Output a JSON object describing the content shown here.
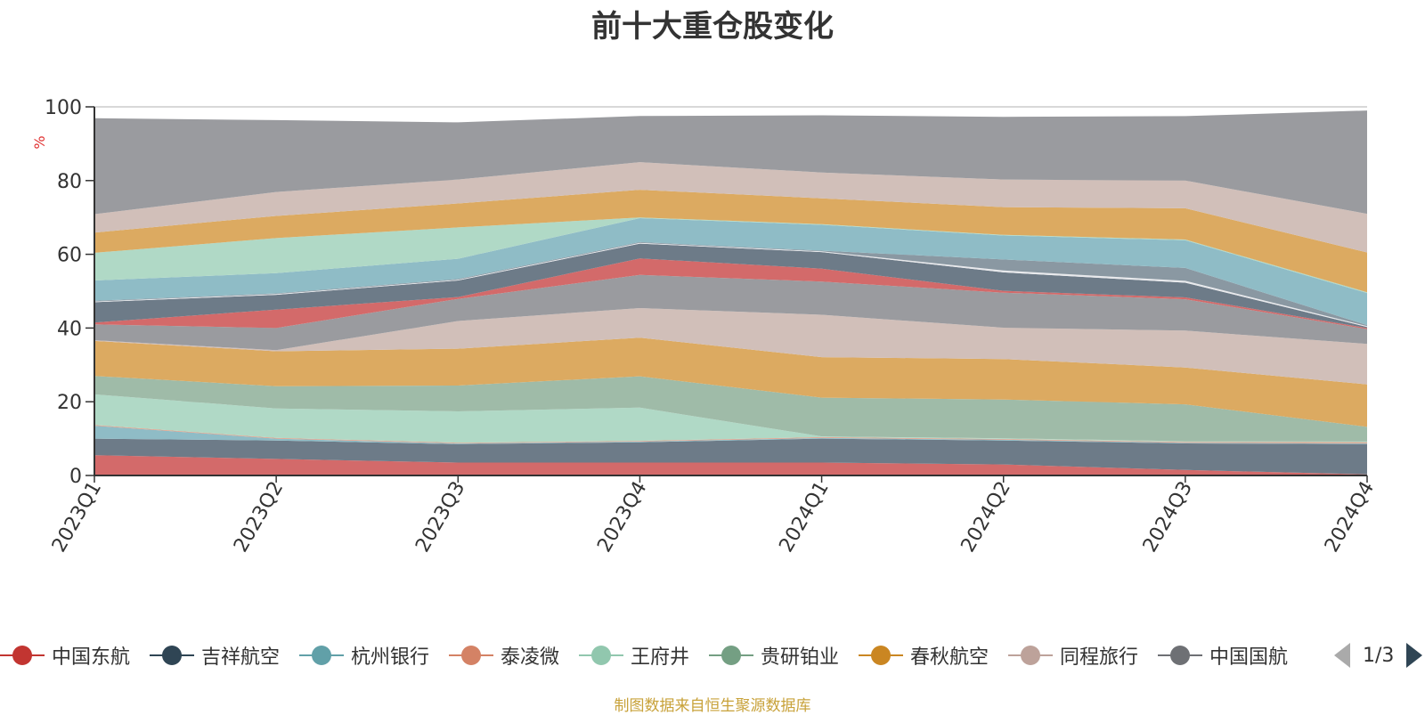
{
  "chart_data": {
    "type": "area",
    "stacked": true,
    "title": "前十大重仓股变化",
    "y_unit_label": "%",
    "ylim": [
      0,
      100
    ],
    "y_ticks": [
      "0",
      "20",
      "40",
      "60",
      "80",
      "100"
    ],
    "grid": true,
    "categories": [
      "2023Q1",
      "2023Q2",
      "2023Q3",
      "2023Q4",
      "2024Q1",
      "2024Q2",
      "2024Q3",
      "2024Q4"
    ],
    "series": [
      {
        "name": "中国东航",
        "color": "#d36a6a",
        "values": [
          5.5,
          4.5,
          3.5,
          3.5,
          3.5,
          3.0,
          1.5,
          0.3
        ]
      },
      {
        "name": "吉祥航空",
        "color": "#6d7b88",
        "values": [
          4.5,
          5.0,
          5.0,
          5.5,
          6.5,
          6.5,
          7.2,
          8.2
        ]
      },
      {
        "name": "杭州银行",
        "color": "#8fbcc6",
        "values": [
          3.5,
          0.5,
          0.2,
          0.2,
          0.2,
          0.2,
          0.2,
          0.2
        ]
      },
      {
        "name": "泰凌微",
        "color": "#e2a08a",
        "values": [
          0.2,
          0.2,
          0.2,
          0.2,
          0.2,
          0.2,
          0.2,
          0.3
        ]
      },
      {
        "name": "王府井",
        "color": "#b0d9c6",
        "values": [
          8.3,
          8.0,
          8.5,
          9.0,
          0.2,
          0.2,
          0.2,
          0.2
        ]
      },
      {
        "name": "贵研铂业",
        "color": "#9fbba8",
        "values": [
          5.0,
          6.0,
          7.0,
          8.5,
          10.5,
          10.5,
          10.0,
          4.0
        ]
      },
      {
        "name": "春秋航空",
        "color": "#dcaa61",
        "values": [
          9.5,
          9.5,
          10.0,
          10.5,
          11.0,
          11.0,
          10.0,
          11.5
        ]
      },
      {
        "name": "同程旅行",
        "color": "#d1bfb9",
        "values": [
          0.2,
          0.3,
          7.5,
          8.0,
          11.5,
          8.5,
          10.0,
          11.0
        ]
      },
      {
        "name": "中国国航",
        "color": "#9a9b9f",
        "values": [
          4.3,
          6.0,
          6.0,
          9.0,
          9.0,
          9.5,
          8.5,
          4.0
        ]
      },
      {
        "name": "",
        "color": "#d36a6a",
        "values": [
          0.5,
          5.0,
          0.5,
          4.5,
          3.5,
          0.5,
          0.5,
          0.3
        ]
      },
      {
        "name": "",
        "color": "#6d7b88",
        "values": [
          5.5,
          4.0,
          4.5,
          4.0,
          4.5,
          5.0,
          4.0,
          0.3
        ]
      },
      {
        "name": "",
        "color": "#e8e9ec",
        "values": [
          0.2,
          0.2,
          0.2,
          0.2,
          0.2,
          0.5,
          0.5,
          0.2
        ]
      },
      {
        "name": "",
        "color": "#8a98a2",
        "values": [
          0.2,
          0.2,
          0.2,
          0.2,
          0.2,
          3.0,
          3.5,
          0.3
        ]
      },
      {
        "name": "",
        "color": "#8fbcc6",
        "values": [
          5.5,
          5.5,
          5.5,
          6.5,
          7.0,
          6.5,
          7.5,
          8.7
        ]
      },
      {
        "name": "",
        "color": "#b0d9c6",
        "values": [
          7.5,
          9.5,
          8.5,
          0.2,
          0.2,
          0.2,
          0.2,
          0.2
        ]
      },
      {
        "name": "",
        "color": "#dcaa61",
        "values": [
          5.5,
          6.0,
          6.5,
          7.5,
          7.0,
          7.5,
          8.5,
          10.8
        ]
      },
      {
        "name": "",
        "color": "#d1bfb9",
        "values": [
          5.0,
          6.5,
          6.5,
          7.5,
          7.0,
          7.5,
          7.5,
          10.5
        ]
      },
      {
        "name": "",
        "color": "#9a9b9f",
        "values": [
          26.0,
          19.5,
          15.5,
          12.5,
          15.5,
          17.0,
          17.5,
          28.0
        ]
      }
    ]
  },
  "legend": {
    "page_indicator": "1/3",
    "items": [
      {
        "name": "中国东航",
        "color": "#c23531"
      },
      {
        "name": "吉祥航空",
        "color": "#2f4554"
      },
      {
        "name": "杭州银行",
        "color": "#61a0a8"
      },
      {
        "name": "泰凌微",
        "color": "#d48265"
      },
      {
        "name": "王府井",
        "color": "#91c7ae"
      },
      {
        "name": "贵研铂业",
        "color": "#749f83"
      },
      {
        "name": "春秋航空",
        "color": "#ca8622"
      },
      {
        "name": "同程旅行",
        "color": "#bda29a"
      },
      {
        "name": "中国国航",
        "color": "#6e7074"
      }
    ]
  },
  "footer": {
    "note": "制图数据来自恒生聚源数据库"
  }
}
